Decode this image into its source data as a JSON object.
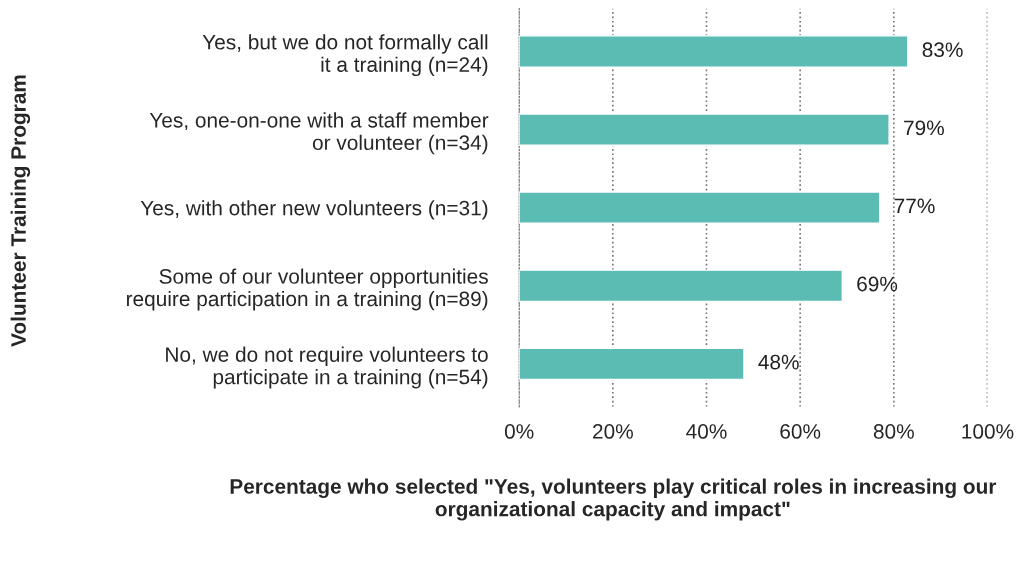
{
  "chart_data": {
    "type": "bar",
    "orientation": "horizontal",
    "categories": [
      "Yes, but we do not formally call\nit a training (n=24)",
      "Yes, one-on-one with a staff member\nor volunteer (n=34)",
      "Yes, with other new volunteers (n=31)",
      "Some of our volunteer opportunities\nrequire participation in a training (n=89)",
      "No, we do not require volunteers to\nparticipate in a training (n=54)"
    ],
    "values": [
      83,
      79,
      77,
      69,
      48
    ],
    "value_labels": [
      "83%",
      "79%",
      "77%",
      "69%",
      "48%"
    ],
    "color": "#5bbcb4",
    "xlim": [
      0,
      100
    ],
    "xticks": [
      {
        "value": 0,
        "label": "0%"
      },
      {
        "value": 20,
        "label": "20%"
      },
      {
        "value": 40,
        "label": "40%"
      },
      {
        "value": 60,
        "label": "60%"
      },
      {
        "value": 80,
        "label": "80%"
      },
      {
        "value": 100,
        "label": "100%"
      }
    ],
    "grid": "x",
    "xlabel": "Percentage who selected \"Yes, volunteers play critical roles in increasing our organizational capacity and impact\"",
    "ylabel": "Volunteer Training Program"
  }
}
